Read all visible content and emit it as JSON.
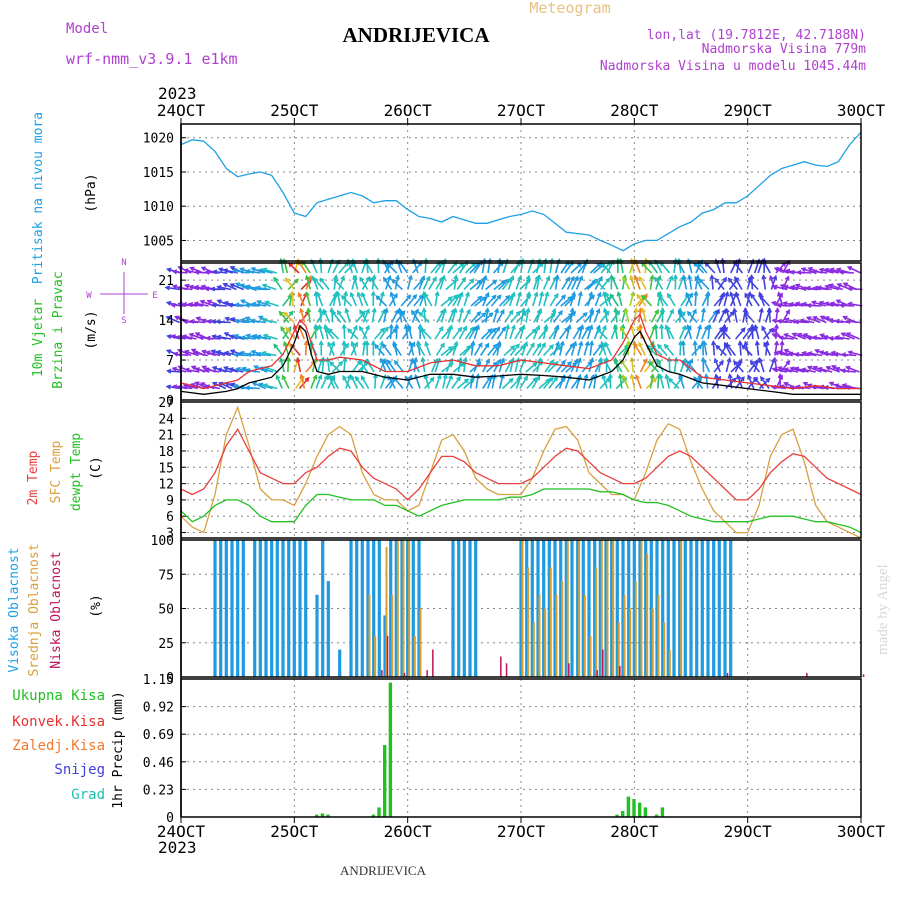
{
  "header": {
    "model_label": "Model",
    "model_name": "wrf-nmm_v3.9.1  e1km",
    "station": "ANDRIJEVICA",
    "meteogram": "Meteogram",
    "lonlat": "lon,lat (19.7812E, 42.7188N)",
    "altitude": "Nadmorska Visina 779m",
    "model_altitude": "Nadmorska Visina u modelu 1045.44m",
    "footer_station": "ANDRIJEVICA",
    "credit": "made by Angel"
  },
  "time_axis": {
    "year": "2023",
    "ticks": [
      "24OCT",
      "25OCT",
      "26OCT",
      "27OCT",
      "28OCT",
      "29OCT",
      "30OCT"
    ]
  },
  "colors": {
    "pressure": "#1ea0e6",
    "wind_speed": "#000000",
    "wind_gust": "#e83030",
    "temp2m": "#e84040",
    "sfc_temp": "#d8a040",
    "dewpt": "#22c022",
    "high_cloud": "#1e9be0",
    "mid_cloud": "#d8a030",
    "low_cloud": "#c0105a",
    "precip_total": "#22c022",
    "precip_conv": "#e83030",
    "precip_frz": "#f07a30",
    "snow": "#4040e0",
    "graupel": "#20c0b0",
    "axis_label_purple": "#b040d0"
  },
  "chart_data": [
    {
      "type": "line",
      "panel": "pressure",
      "ylabels": [
        "Pritisak na nivou mora",
        "(hPa)"
      ],
      "ylim": [
        1002,
        1022
      ],
      "yticks": [
        1005,
        1010,
        1015,
        1020
      ],
      "grid": true,
      "x_days": [
        0,
        0.1,
        0.2,
        0.3,
        0.4,
        0.5,
        0.6,
        0.7,
        0.8,
        0.9,
        1,
        1.1,
        1.2,
        1.3,
        1.4,
        1.5,
        1.6,
        1.7,
        1.8,
        1.9,
        2,
        2.1,
        2.2,
        2.3,
        2.4,
        2.5,
        2.6,
        2.7,
        2.8,
        2.9,
        3,
        3.1,
        3.2,
        3.3,
        3.4,
        3.5,
        3.6,
        3.7,
        3.8,
        3.9,
        4,
        4.1,
        4.2,
        4.3,
        4.4,
        4.5,
        4.6,
        4.7,
        4.8,
        4.9,
        5,
        5.1,
        5.2,
        5.3,
        5.4,
        5.5,
        5.6,
        5.7,
        5.8,
        5.9,
        6
      ],
      "series": [
        {
          "values": [
            1019,
            1019.7,
            1019.5,
            1018,
            1015.5,
            1014.3,
            1014.7,
            1015,
            1014.5,
            1012,
            1009,
            1008.5,
            1010.5,
            1011,
            1011.5,
            1012,
            1011.5,
            1010.5,
            1010.8,
            1010.8,
            1009.5,
            1008.5,
            1008.2,
            1007.7,
            1008.5,
            1008,
            1007.5,
            1007.5,
            1008,
            1008.5,
            1008.8,
            1009.3,
            1008.8,
            1007.5,
            1006.2,
            1006,
            1005.8,
            1005,
            1004.3,
            1003.5,
            1004.5,
            1005,
            1005,
            1006,
            1007,
            1007.7,
            1009,
            1009.5,
            1010.5,
            1010.5,
            1011.5,
            1013,
            1014.5,
            1015.5,
            1016,
            1016.5,
            1016,
            1015.8,
            1016.5,
            1019,
            1020.8
          ]
        }
      ]
    },
    {
      "type": "line",
      "panel": "wind",
      "ylabels": [
        "10m Vjetar",
        "Brzina i Pravac",
        "(m/s)"
      ],
      "ylim": [
        0,
        24
      ],
      "yticks": [
        0,
        7,
        14,
        21
      ],
      "compass": [
        "N",
        "S",
        "W",
        "E"
      ],
      "grid": true,
      "x_days": [
        0,
        0.2,
        0.4,
        0.5,
        0.6,
        0.8,
        0.9,
        1,
        1.05,
        1.1,
        1.15,
        1.2,
        1.3,
        1.4,
        1.6,
        1.8,
        2,
        2.2,
        2.4,
        2.6,
        2.8,
        3,
        3.2,
        3.4,
        3.6,
        3.8,
        3.9,
        4,
        4.05,
        4.1,
        4.15,
        4.2,
        4.3,
        4.4,
        4.6,
        4.8,
        5,
        5.2,
        5.4,
        5.6,
        5.8,
        6
      ],
      "series": [
        {
          "name": "speed",
          "values": [
            1.5,
            1,
            1.5,
            2,
            3,
            4,
            6,
            10,
            13,
            12,
            8,
            5,
            4.5,
            5,
            5,
            4,
            3.5,
            4.5,
            4.5,
            4,
            4.2,
            4.5,
            4.3,
            4,
            3.5,
            5,
            7,
            11,
            12,
            10,
            8,
            6,
            5,
            4.5,
            3,
            2.5,
            2,
            1.5,
            1,
            1,
            1,
            1
          ]
        },
        {
          "name": "gust",
          "values": [
            3,
            2,
            3,
            3.5,
            5,
            6,
            8,
            12,
            14,
            13,
            10,
            7,
            7,
            7.5,
            7,
            5,
            5,
            6.5,
            7,
            6,
            6,
            7,
            6.5,
            6,
            5.5,
            7,
            10,
            14,
            15,
            12,
            10,
            8,
            7,
            7,
            4,
            3.5,
            3,
            2.5,
            2,
            2.5,
            2,
            2
          ]
        }
      ]
    },
    {
      "type": "line",
      "panel": "temperature",
      "ylabels": [
        "2m Temp",
        "SFC Temp",
        "dewpt Temp",
        "(C)"
      ],
      "ylim": [
        2,
        27
      ],
      "yticks": [
        3,
        6,
        9,
        12,
        15,
        18,
        21,
        24,
        27
      ],
      "grid": true,
      "x_days": [
        0,
        0.1,
        0.2,
        0.3,
        0.4,
        0.5,
        0.6,
        0.7,
        0.8,
        0.9,
        1,
        1.1,
        1.2,
        1.3,
        1.4,
        1.5,
        1.6,
        1.7,
        1.8,
        1.9,
        2,
        2.1,
        2.2,
        2.3,
        2.4,
        2.5,
        2.6,
        2.7,
        2.8,
        2.9,
        3,
        3.1,
        3.2,
        3.3,
        3.4,
        3.5,
        3.6,
        3.7,
        3.8,
        3.9,
        4,
        4.1,
        4.2,
        4.3,
        4.4,
        4.5,
        4.6,
        4.7,
        4.8,
        4.9,
        5,
        5.1,
        5.2,
        5.3,
        5.4,
        5.5,
        5.6,
        5.7,
        5.8,
        5.9,
        6
      ],
      "series": [
        {
          "name": "2m",
          "values": [
            11,
            10,
            11,
            14,
            19,
            22,
            18,
            14,
            13,
            12,
            12,
            14,
            15,
            17,
            18.5,
            18,
            15,
            13,
            12,
            11,
            9,
            11,
            14,
            17,
            17,
            16,
            14,
            13,
            12,
            12,
            12,
            13,
            15,
            17,
            18.5,
            18,
            16,
            14,
            13,
            12,
            12,
            13,
            15,
            17,
            18,
            17,
            15,
            13,
            11,
            9,
            9,
            11,
            14,
            16,
            17.5,
            17,
            15,
            13,
            12,
            11,
            10
          ]
        },
        {
          "name": "sfc",
          "values": [
            6,
            4,
            3,
            10,
            21,
            26,
            19,
            11,
            9,
            9,
            8,
            12,
            17,
            21,
            22.5,
            21,
            14,
            10,
            9,
            9,
            7,
            8,
            14,
            20,
            21,
            18,
            13,
            11,
            10,
            10,
            10,
            13,
            18,
            22,
            22.5,
            20,
            14,
            12,
            10,
            10,
            9,
            14,
            20,
            23,
            22,
            16,
            11,
            7,
            5,
            3,
            3,
            8,
            17,
            21,
            22,
            16,
            8,
            5,
            4,
            3,
            2
          ]
        },
        {
          "name": "dewpt",
          "values": [
            7,
            5,
            6,
            8,
            9,
            9,
            8,
            6,
            5,
            5,
            5,
            8,
            10,
            10,
            9.5,
            9,
            9,
            9,
            8,
            8,
            7,
            6,
            7,
            8,
            8.5,
            9,
            9,
            9,
            9,
            9.5,
            9.5,
            10,
            11,
            11,
            11,
            11,
            11,
            10.5,
            10.5,
            10,
            9,
            8.5,
            8.5,
            8,
            7,
            6,
            5.5,
            5,
            5,
            5,
            5,
            5.5,
            6,
            6,
            6,
            5.5,
            5,
            5,
            4.5,
            4,
            3
          ]
        }
      ]
    },
    {
      "type": "bar",
      "panel": "cloud",
      "ylabels": [
        "Visoka Oblacnost",
        "Srednja Oblacnost",
        "Niska Oblacnost",
        "(%)"
      ],
      "ylim": [
        0,
        100
      ],
      "yticks": [
        0,
        25,
        50,
        75,
        100
      ],
      "grid": true,
      "series": [
        {
          "name": "high",
          "x_days": [
            0.3,
            0.35,
            0.4,
            0.45,
            0.5,
            0.55,
            0.65,
            0.7,
            0.75,
            0.8,
            0.85,
            0.9,
            0.95,
            1,
            1.05,
            1.1,
            1.2,
            1.25,
            1.3,
            1.4,
            1.5,
            1.55,
            1.6,
            1.65,
            1.7,
            1.75,
            1.8,
            1.85,
            1.9,
            1.95,
            2,
            2.05,
            2.1,
            2.4,
            2.45,
            2.5,
            2.55,
            2.6,
            3,
            3.05,
            3.1,
            3.15,
            3.2,
            3.25,
            3.3,
            3.35,
            3.4,
            3.45,
            3.5,
            3.55,
            3.6,
            3.65,
            3.7,
            3.75,
            3.8,
            3.85,
            3.9,
            3.95,
            4,
            4.05,
            4.1,
            4.15,
            4.2,
            4.25,
            4.3,
            4.35,
            4.4,
            4.45,
            4.5,
            4.55,
            4.6,
            4.65,
            4.7,
            4.75,
            4.8,
            4.85
          ],
          "values": [
            100,
            100,
            100,
            100,
            100,
            100,
            100,
            100,
            100,
            100,
            100,
            100,
            100,
            100,
            100,
            100,
            60,
            100,
            70,
            20,
            100,
            100,
            100,
            100,
            100,
            100,
            45,
            100,
            100,
            100,
            100,
            100,
            100,
            100,
            100,
            100,
            100,
            100,
            100,
            100,
            100,
            100,
            100,
            100,
            100,
            100,
            100,
            100,
            100,
            100,
            100,
            100,
            100,
            100,
            100,
            100,
            100,
            100,
            100,
            100,
            100,
            100,
            100,
            100,
            100,
            100,
            100,
            100,
            100,
            100,
            100,
            100,
            100,
            100,
            100,
            100
          ]
        },
        {
          "name": "mid",
          "x_days": [
            1.65,
            1.7,
            1.8,
            1.85,
            1.9,
            1.95,
            2,
            2.05,
            2.1,
            3,
            3.05,
            3.1,
            3.15,
            3.2,
            3.25,
            3.3,
            3.35,
            3.4,
            3.5,
            3.55,
            3.6,
            3.65,
            3.7,
            3.75,
            3.8,
            3.85,
            3.9,
            3.95,
            4,
            4.05,
            4.1,
            4.15,
            4.2,
            4.25,
            4.3,
            4.4
          ],
          "values": [
            60,
            30,
            95,
            60,
            100,
            100,
            100,
            30,
            50,
            100,
            80,
            40,
            60,
            50,
            80,
            60,
            70,
            100,
            100,
            60,
            30,
            80,
            100,
            100,
            100,
            40,
            60,
            50,
            70,
            100,
            90,
            50,
            60,
            40,
            20,
            100
          ]
        },
        {
          "name": "low",
          "x_days": [
            1.75,
            1.8,
            1.95,
            2.15,
            2.2,
            2.8,
            2.85,
            3.4,
            3.65,
            3.7,
            3.85,
            4.8,
            5.5,
            6
          ],
          "values": [
            5,
            30,
            3,
            5,
            20,
            15,
            10,
            10,
            5,
            20,
            8,
            3,
            3,
            2
          ]
        }
      ]
    },
    {
      "type": "bar",
      "panel": "precip",
      "ylabels": [
        "1hr Precip (mm)"
      ],
      "legend": [
        "Ukupna Kisa",
        "Konvek.Kisa",
        "Zaledj.Kisa",
        "Snijeg",
        "Grad"
      ],
      "ylim": [
        0,
        1.15
      ],
      "yticks": [
        0,
        0.23,
        0.46,
        0.69,
        0.92,
        1.15
      ],
      "ytick_labels": [
        "0",
        "0.23",
        "0.46",
        "0.69",
        "0.92",
        "1.15"
      ],
      "grid": true,
      "series": [
        {
          "name": "Ukupna Kisa",
          "x_days": [
            1.2,
            1.25,
            1.3,
            1.7,
            1.75,
            1.8,
            3.85,
            3.9,
            3.95,
            4,
            4.05,
            4.1,
            4.2,
            4.25
          ],
          "values": [
            0.02,
            0.03,
            0.02,
            0.02,
            0.08,
            0.6,
            0.02,
            0.05,
            0.17,
            0.15,
            0.12,
            0.08,
            0.02,
            0.08
          ]
        },
        {
          "name": "Ukupna Kisa peak",
          "x_days": [
            1.85
          ],
          "values": [
            1.12
          ]
        }
      ]
    }
  ]
}
